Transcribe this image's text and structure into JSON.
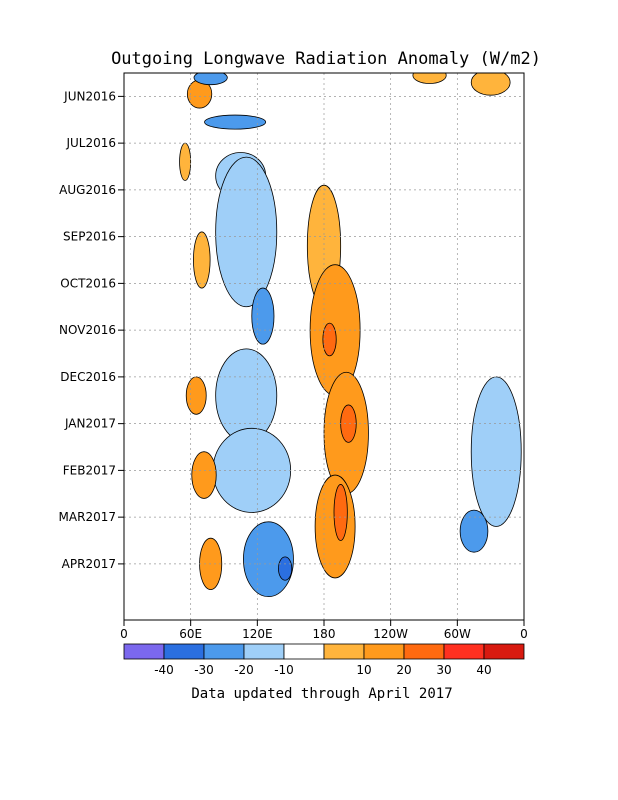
{
  "chart_data": {
    "type": "heatmap",
    "title": "Outgoing Longwave Radiation Anomaly (W/m2)",
    "x_ticks": [
      "0",
      "60E",
      "120E",
      "180",
      "120W",
      "60W",
      "0"
    ],
    "x_tick_lon": [
      0,
      60,
      120,
      180,
      240,
      300,
      360
    ],
    "y_ticks": [
      "JUN2016",
      "JUL2016",
      "AUG2016",
      "SEP2016",
      "OCT2016",
      "NOV2016",
      "DEC2016",
      "JAN2017",
      "FEB2017",
      "MAR2017",
      "APR2017"
    ],
    "y_tick_month": [
      1,
      2,
      3,
      4,
      5,
      6,
      7,
      8,
      9,
      10,
      11
    ],
    "month_range": [
      0.5,
      12.2
    ],
    "grid": true,
    "colorbar": {
      "labels": [
        "-40",
        "-30",
        "-20",
        "-10",
        "10",
        "20",
        "30",
        "40"
      ],
      "colors": [
        "#7b68ee",
        "#2b6fe0",
        "#4c9aec",
        "#9fcff8",
        "#ffffff",
        "#ffb43c",
        "#ff9a1c",
        "#ff6a10",
        "#ff3020",
        "#d81a10"
      ]
    },
    "anomaly_regions": [
      {
        "lon": 65,
        "month": 1.0,
        "w": 12,
        "h": 0.25,
        "value": 35
      },
      {
        "lon": 68,
        "month": 0.95,
        "w": 22,
        "h": 0.6,
        "value": 20
      },
      {
        "lon": 78,
        "month": 0.6,
        "w": 30,
        "h": 0.3,
        "value": -20
      },
      {
        "lon": 100,
        "month": 1.55,
        "w": 55,
        "h": 0.3,
        "value": -20
      },
      {
        "lon": 105,
        "month": 2.7,
        "w": 45,
        "h": 1.0,
        "value": -15
      },
      {
        "lon": 110,
        "month": 3.9,
        "w": 55,
        "h": 3.2,
        "value": -15
      },
      {
        "lon": 125,
        "month": 5.7,
        "w": 20,
        "h": 1.2,
        "value": -25
      },
      {
        "lon": 110,
        "month": 7.4,
        "w": 55,
        "h": 2.0,
        "value": -15
      },
      {
        "lon": 115,
        "month": 9.0,
        "w": 70,
        "h": 1.8,
        "value": -15
      },
      {
        "lon": 130,
        "month": 10.9,
        "w": 45,
        "h": 1.6,
        "value": -20
      },
      {
        "lon": 145,
        "month": 11.1,
        "w": 12,
        "h": 0.5,
        "value": -30
      },
      {
        "lon": 180,
        "month": 4.2,
        "w": 30,
        "h": 2.6,
        "value": 15
      },
      {
        "lon": 190,
        "month": 6.0,
        "w": 45,
        "h": 2.8,
        "value": 20
      },
      {
        "lon": 185,
        "month": 6.2,
        "w": 12,
        "h": 0.7,
        "value": 35
      },
      {
        "lon": 200,
        "month": 8.2,
        "w": 40,
        "h": 2.6,
        "value": 20
      },
      {
        "lon": 202,
        "month": 8.0,
        "w": 14,
        "h": 0.8,
        "value": 30
      },
      {
        "lon": 190,
        "month": 10.2,
        "w": 36,
        "h": 2.2,
        "value": 20
      },
      {
        "lon": 195,
        "month": 9.9,
        "w": 12,
        "h": 1.2,
        "value": 30
      },
      {
        "lon": 65,
        "month": 7.4,
        "w": 18,
        "h": 0.8,
        "value": 20
      },
      {
        "lon": 72,
        "month": 9.1,
        "w": 22,
        "h": 1.0,
        "value": 20
      },
      {
        "lon": 78,
        "month": 11.0,
        "w": 20,
        "h": 1.1,
        "value": 20
      },
      {
        "lon": 70,
        "month": 4.5,
        "w": 15,
        "h": 1.2,
        "value": 15
      },
      {
        "lon": 55,
        "month": 2.4,
        "w": 10,
        "h": 0.8,
        "value": 15
      },
      {
        "lon": 335,
        "month": 8.6,
        "w": 45,
        "h": 3.2,
        "value": -15
      },
      {
        "lon": 315,
        "month": 10.3,
        "w": 25,
        "h": 0.9,
        "value": -20
      },
      {
        "lon": 275,
        "month": 0.55,
        "w": 30,
        "h": 0.35,
        "value": 15
      },
      {
        "lon": 330,
        "month": 0.7,
        "w": 35,
        "h": 0.55,
        "value": 15
      }
    ]
  },
  "footer": "Data updated through April 2017"
}
